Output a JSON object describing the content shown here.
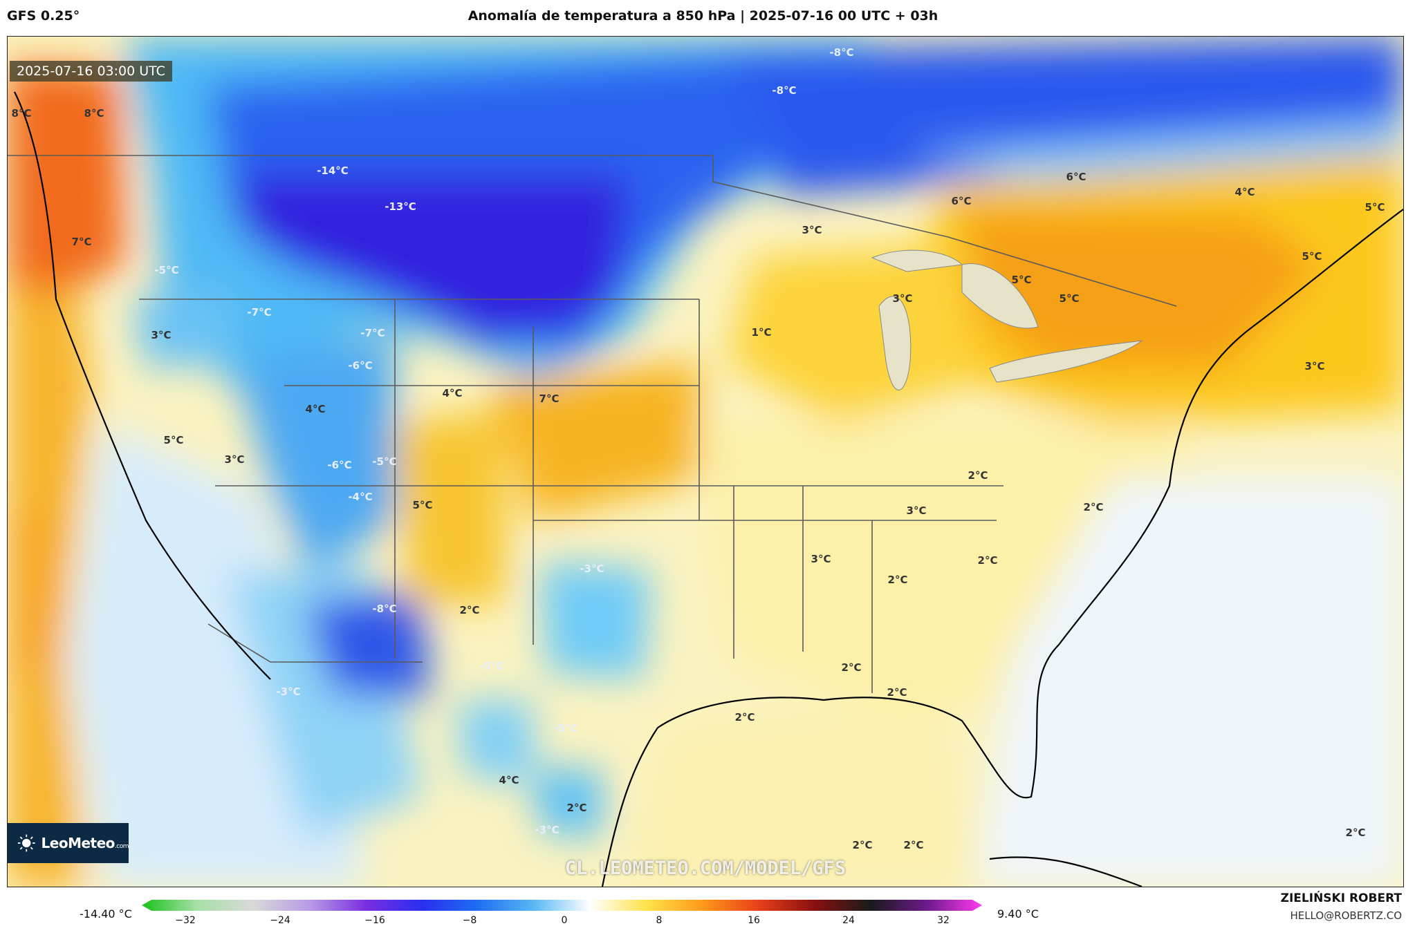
{
  "header": {
    "model": "GFS 0.25°",
    "title": "Anomalía de temperatura a 850 hPa | 2025-07-16 00 UTC + 03h"
  },
  "map": {
    "timestamp": "2025-07-16 03:00 UTC",
    "watermark": "CL.LEOMETEO.COM/MODEL/GFS",
    "logo_text": "LeoMeteo",
    "logo_suffix": ".com",
    "labels": [
      "8°C",
      "8°C",
      "7°C",
      "-5°C",
      "-14°C",
      "-13°C",
      "-8°C",
      "-8°C",
      "-7°C",
      "-7°C",
      "3°C",
      "-6°C",
      "4°C",
      "7°C",
      "4°C",
      "5°C",
      "3°C",
      "-6°C",
      "-5°C",
      "-4°C",
      "5°C",
      "-3°C",
      "-8°C",
      "2°C",
      "-5°C",
      "-3°C",
      "-5°C",
      "4°C",
      "2°C",
      "-3°C",
      "3°C",
      "1°C",
      "3°C",
      "6°C",
      "6°C",
      "4°C",
      "5°C",
      "5°C",
      "5°C",
      "5°C",
      "3°C",
      "3°C",
      "2°C",
      "2°C",
      "3°C",
      "2°C",
      "2°C",
      "2°C",
      "2°C",
      "2°C",
      "2°C",
      "2°C",
      "2°C"
    ]
  },
  "legend": {
    "min_label": "-14.40 °C",
    "max_label": "9.40 °C",
    "ticks": [
      "−32",
      "−24",
      "−16",
      "−8",
      "0",
      "8",
      "16",
      "24",
      "32"
    ],
    "colors": [
      "#19c219",
      "#a8e0a8",
      "#d9d9d9",
      "#b79ae6",
      "#7a2ee0",
      "#2a2ef0",
      "#1e6ef2",
      "#5ab8f5",
      "#ffffff",
      "#ffe34d",
      "#ff9a1a",
      "#e8401a",
      "#8a1010",
      "#1a1a1a",
      "#6a1a8a",
      "#ff3af0"
    ]
  },
  "credits": {
    "name": "ZIELIŃSKI ROBERT",
    "email": "HELLO@ROBERTZ.CO"
  }
}
